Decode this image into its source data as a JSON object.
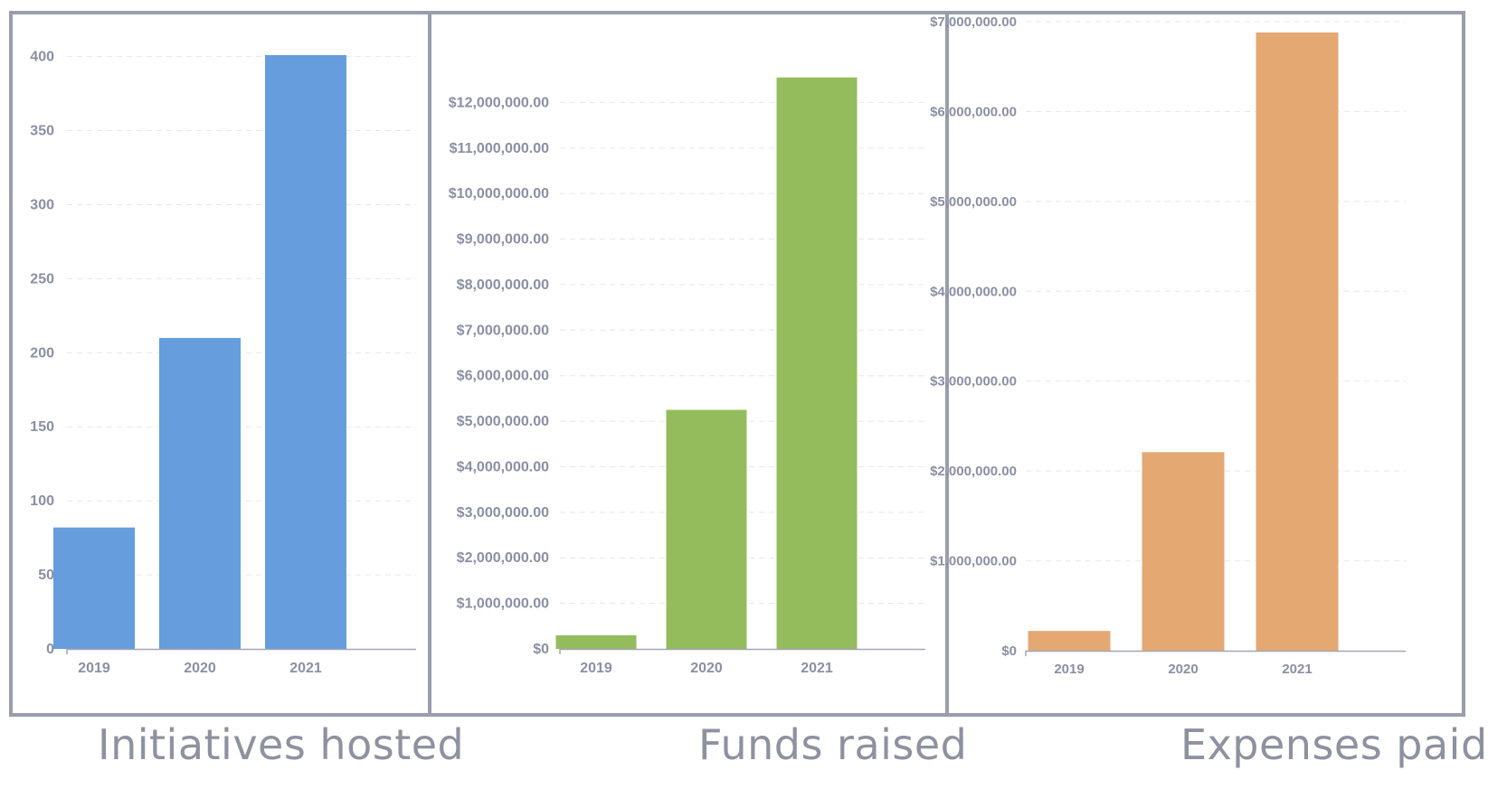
{
  "chart_data": [
    {
      "type": "bar",
      "title": "Initiatives hosted",
      "categories": [
        "2019",
        "2020",
        "2021"
      ],
      "values": [
        82,
        210,
        401
      ],
      "ylim": [
        0,
        401
      ],
      "yticks": [
        0,
        50,
        100,
        150,
        200,
        250,
        300,
        350,
        400
      ],
      "ytick_labels": [
        "0",
        "50",
        "100",
        "150",
        "200",
        "250",
        "300",
        "350",
        "400"
      ],
      "color": "#659ddd",
      "grid": true
    },
    {
      "type": "bar",
      "title": "Funds raised",
      "categories": [
        "2019",
        "2020",
        "2021"
      ],
      "values": [
        300000,
        5250000,
        12550000
      ],
      "ylim": [
        0,
        13000000
      ],
      "yticks": [
        0,
        1000000,
        2000000,
        3000000,
        4000000,
        5000000,
        6000000,
        7000000,
        8000000,
        9000000,
        10000000,
        11000000,
        12000000
      ],
      "ytick_labels": [
        "$0",
        "$1,000,000.00",
        "$2,000,000.00",
        "$3,000,000.00",
        "$4,000,000.00",
        "$5,000,000.00",
        "$6,000,000.00",
        "$7,000,000.00",
        "$8,000,000.00",
        "$9,000,000.00",
        "$10,000,000.00",
        "$11,000,000.00",
        "$12,000,000.00"
      ],
      "color": "#95bc5c",
      "grid": true
    },
    {
      "type": "bar",
      "title": "Expenses paid",
      "categories": [
        "2019",
        "2020",
        "2021"
      ],
      "values": [
        220000,
        2210000,
        6880000
      ],
      "ylim": [
        0,
        7000000
      ],
      "yticks": [
        0,
        1000000,
        2000000,
        3000000,
        4000000,
        5000000,
        6000000,
        7000000
      ],
      "ytick_labels": [
        "$0",
        "$1,000,000.00",
        "$2,000,000.00",
        "$3,000,000.00",
        "$4,000,000.00",
        "$5,000,000.00",
        "$6,000,000.00",
        "$7,000,000.00"
      ],
      "color": "#e4a873",
      "grid": true
    }
  ]
}
